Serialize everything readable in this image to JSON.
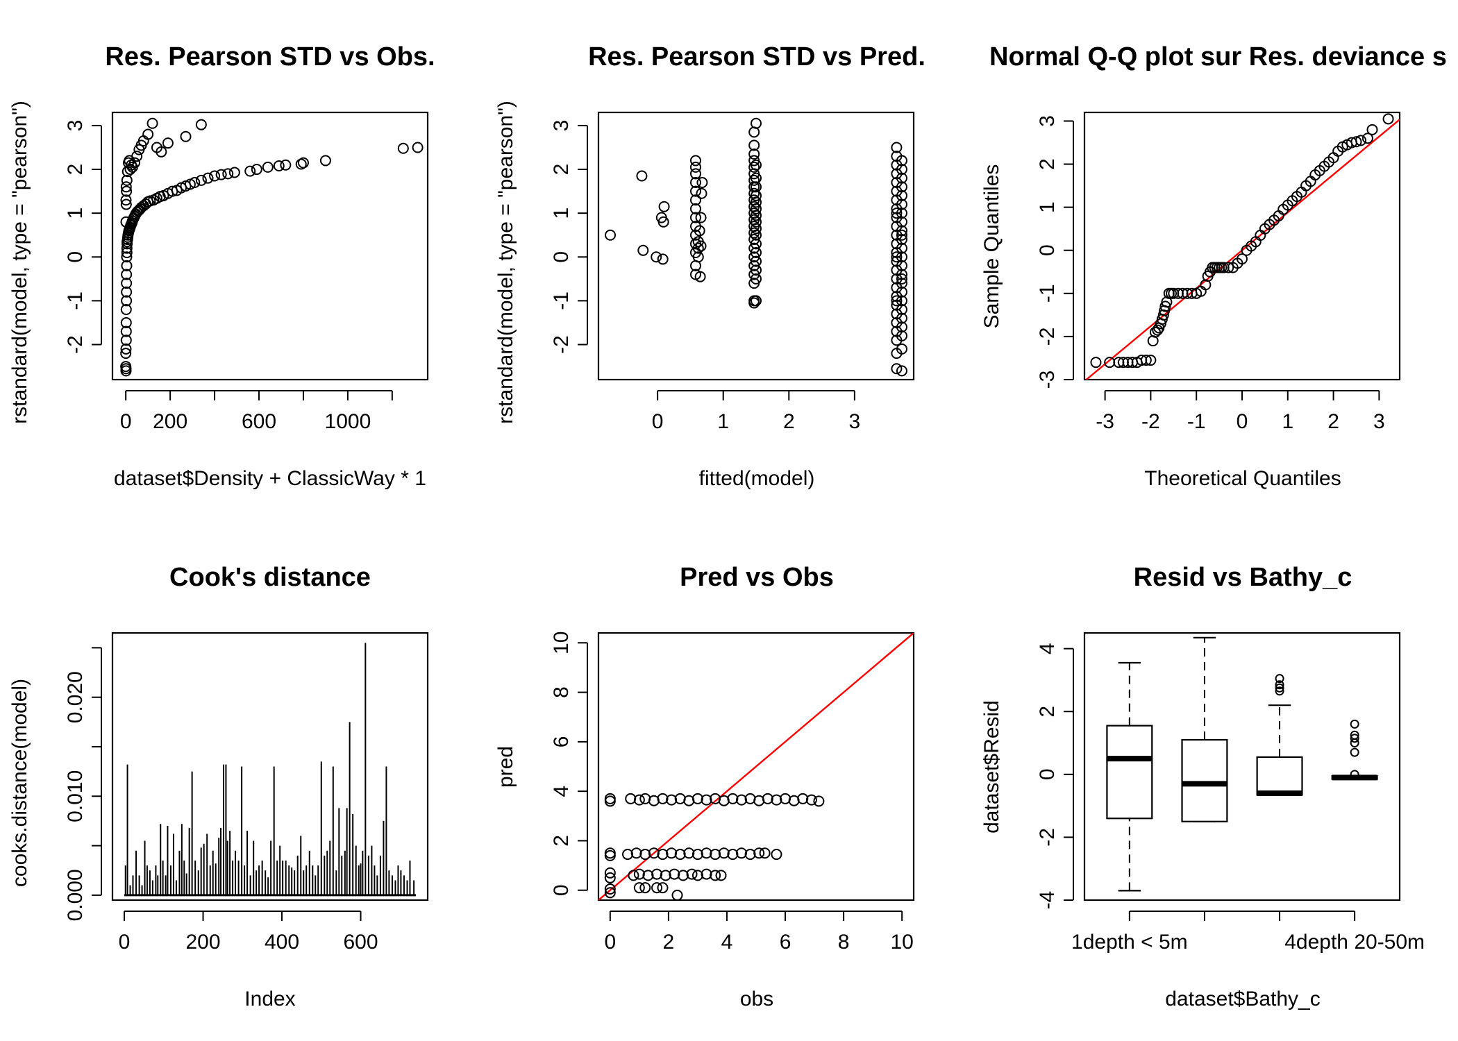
{
  "figure": {
    "background": "#ffffff",
    "point_color": "#000000",
    "reference_line_color": "#ff0000"
  },
  "chart_data": [
    {
      "type": "scatter",
      "title": "Res. Pearson STD vs Obs.",
      "xlabel": "dataset$Density + ClassicWay * 1",
      "ylabel": "rstandard(model, type = \"pearson\")",
      "xlim": [
        -60,
        1360
      ],
      "ylim": [
        -2.8,
        3.3
      ],
      "x_ticks": [
        0,
        200,
        600,
        1000
      ],
      "x_tick_labels": [
        "0",
        "200",
        "600",
        "1000"
      ],
      "x_tick_marks": [
        0,
        200,
        400,
        600,
        800,
        1000,
        1200
      ],
      "y_ticks": [
        -2,
        -1,
        0,
        1,
        2,
        3
      ],
      "y_tick_labels": [
        "-2",
        "-1",
        "0",
        "1",
        "2",
        "3"
      ],
      "grid": false,
      "x": [
        1,
        1,
        1,
        2,
        2,
        2,
        2,
        3,
        3,
        3,
        3,
        4,
        4,
        5,
        5,
        6,
        6,
        8,
        9,
        10,
        12,
        14,
        16,
        18,
        20,
        22,
        25,
        28,
        30,
        35,
        40,
        45,
        50,
        55,
        60,
        65,
        70,
        80,
        90,
        100,
        110,
        125,
        140,
        155,
        170,
        190,
        210,
        230,
        250,
        270,
        290,
        310,
        340,
        370,
        400,
        430,
        460,
        490,
        560,
        590,
        640,
        690,
        720,
        790,
        800,
        900,
        1250,
        1315,
        2,
        3,
        5,
        8,
        12,
        16,
        20,
        25,
        30,
        40,
        50,
        60,
        70,
        80,
        100,
        120,
        140,
        160,
        190,
        270,
        340,
        0,
        0,
        1,
        1,
        2
      ],
      "y": [
        -2.6,
        -2.55,
        -2.1,
        -1.9,
        -1.7,
        -1.5,
        -1.2,
        -1.0,
        -0.8,
        -0.6,
        -0.4,
        -0.2,
        0.0,
        0.1,
        0.2,
        0.3,
        0.35,
        0.4,
        0.45,
        0.5,
        0.55,
        0.6,
        0.62,
        0.65,
        0.68,
        0.72,
        0.75,
        0.78,
        0.82,
        0.88,
        0.93,
        0.98,
        1.02,
        1.05,
        1.07,
        1.1,
        1.13,
        1.17,
        1.21,
        1.26,
        1.28,
        1.3,
        1.34,
        1.38,
        1.4,
        1.45,
        1.5,
        1.52,
        1.58,
        1.62,
        1.66,
        1.7,
        1.75,
        1.8,
        1.85,
        1.88,
        1.9,
        1.93,
        1.96,
        2.0,
        2.05,
        2.08,
        2.1,
        2.12,
        2.15,
        2.2,
        2.48,
        2.5,
        1.2,
        1.5,
        1.75,
        1.95,
        2.15,
        2.2,
        2.0,
        2.1,
        2.05,
        2.15,
        2.3,
        2.45,
        2.55,
        2.65,
        2.8,
        3.05,
        2.5,
        2.4,
        2.6,
        2.75,
        3.02,
        -2.5,
        -2.2,
        0.8,
        1.3,
        1.6
      ]
    },
    {
      "type": "scatter",
      "title": "Res. Pearson STD vs Pred.",
      "xlabel": "fitted(model)",
      "ylabel": "rstandard(model, type = \"pearson\")",
      "xlim": [
        -0.9,
        3.9
      ],
      "ylim": [
        -2.8,
        3.3
      ],
      "x_ticks": [
        0,
        1,
        2,
        3
      ],
      "x_tick_labels": [
        "0",
        "1",
        "2",
        "3"
      ],
      "y_ticks": [
        -2,
        -1,
        0,
        1,
        2,
        3
      ],
      "y_tick_labels": [
        "-2",
        "-1",
        "0",
        "1",
        "2",
        "3"
      ],
      "grid": false,
      "x": [
        -0.72,
        -0.22,
        -0.24,
        -0.02,
        0.08,
        0.09,
        0.06,
        0.1,
        0.58,
        0.58,
        0.58,
        0.58,
        0.58,
        0.58,
        0.58,
        0.58,
        0.58,
        0.58,
        0.58,
        0.58,
        0.58,
        0.58,
        0.62,
        0.62,
        0.62,
        0.65,
        0.66,
        0.67,
        0.68,
        0.66,
        0.64,
        1.47,
        1.47,
        1.47,
        1.47,
        1.47,
        1.47,
        1.47,
        1.47,
        1.47,
        1.47,
        1.47,
        1.47,
        1.47,
        1.47,
        1.47,
        1.47,
        1.47,
        1.47,
        1.47,
        1.47,
        1.47,
        1.47,
        1.47,
        1.5,
        1.5,
        1.5,
        1.5,
        1.5,
        1.5,
        1.5,
        1.5,
        1.5,
        1.5,
        1.5,
        1.5,
        1.5,
        1.5,
        1.5,
        1.5,
        1.5,
        3.64,
        3.64,
        3.64,
        3.64,
        3.64,
        3.64,
        3.64,
        3.64,
        3.64,
        3.64,
        3.64,
        3.64,
        3.64,
        3.64,
        3.64,
        3.64,
        3.64,
        3.64,
        3.64,
        3.64,
        3.64,
        3.64,
        3.64,
        3.64,
        3.64,
        3.64,
        3.64,
        3.64,
        3.72,
        3.72,
        3.72,
        3.72,
        3.72,
        3.72,
        3.72,
        3.72,
        3.72,
        3.72,
        3.72,
        3.72,
        3.72,
        3.72,
        3.72,
        3.72,
        3.72,
        3.72,
        3.72,
        3.72,
        3.72,
        3.72,
        3.72,
        3.72,
        3.72
      ],
      "y": [
        0.5,
        0.15,
        1.85,
        0.0,
        -0.05,
        0.8,
        0.9,
        1.15,
        -0.4,
        -0.2,
        0.1,
        0.3,
        0.5,
        0.7,
        0.9,
        1.1,
        1.3,
        1.5,
        1.7,
        1.9,
        2.05,
        2.2,
        0.0,
        0.2,
        0.35,
        -0.45,
        0.25,
        1.45,
        1.7,
        0.9,
        0.6,
        -1.05,
        -1.0,
        -0.6,
        -0.4,
        -0.2,
        0.0,
        0.2,
        0.4,
        0.55,
        0.7,
        0.85,
        1.0,
        1.15,
        1.3,
        1.45,
        1.6,
        1.75,
        1.9,
        2.05,
        2.2,
        2.35,
        2.55,
        2.85,
        3.05,
        -1.0,
        -0.5,
        -0.3,
        -0.1,
        0.1,
        0.3,
        0.5,
        0.65,
        0.8,
        0.95,
        1.1,
        1.25,
        1.4,
        1.6,
        1.8,
        2.1,
        -2.55,
        -2.2,
        -1.9,
        -1.7,
        -1.5,
        -1.3,
        -1.1,
        -0.9,
        -0.7,
        -0.5,
        -0.3,
        -0.1,
        0.1,
        0.3,
        0.5,
        0.7,
        0.9,
        1.1,
        1.3,
        1.5,
        1.7,
        1.9,
        2.1,
        2.3,
        2.5,
        -1.0,
        0.0,
        1.0,
        -2.6,
        -2.1,
        -1.8,
        -1.6,
        -1.4,
        -1.2,
        -1.0,
        -0.8,
        -0.6,
        -0.4,
        -0.2,
        0.0,
        0.2,
        0.4,
        0.6,
        0.8,
        1.0,
        1.2,
        1.4,
        1.6,
        1.8,
        2.0,
        2.2,
        -0.5,
        0.5
      ]
    },
    {
      "type": "scatter",
      "title": "Normal Q-Q plot sur Res. deviance s",
      "xlabel": "Theoretical Quantiles",
      "ylabel": "Sample Quantiles",
      "xlim": [
        -3.45,
        3.45
      ],
      "ylim": [
        -3.0,
        3.2
      ],
      "x_ticks": [
        -3,
        -2,
        -1,
        0,
        1,
        2,
        3
      ],
      "x_tick_labels": [
        "-3",
        "-2",
        "-1",
        "0",
        "1",
        "2",
        "3"
      ],
      "y_ticks": [
        -3,
        -2,
        -1,
        0,
        1,
        2,
        3
      ],
      "y_tick_labels": [
        "-3",
        "-2",
        "-1",
        "0",
        "1",
        "2",
        "3"
      ],
      "reference_line": {
        "slope": 0.88,
        "intercept": 0.0
      },
      "grid": false,
      "x": [
        -3.2,
        -2.9,
        -2.7,
        -2.6,
        -2.5,
        -2.4,
        -2.3,
        -2.2,
        -2.1,
        -2.0,
        -1.95,
        -1.9,
        -1.85,
        -1.82,
        -1.78,
        -1.75,
        -1.72,
        -1.7,
        -1.68,
        -1.65,
        -1.6,
        -1.55,
        -1.5,
        -1.4,
        -1.3,
        -1.2,
        -1.1,
        -1.0,
        -0.9,
        -0.8,
        -0.75,
        -0.7,
        -0.65,
        -0.6,
        -0.55,
        -0.5,
        -0.45,
        -0.4,
        -0.3,
        -0.2,
        -0.1,
        0.0,
        0.1,
        0.2,
        0.3,
        0.4,
        0.5,
        0.6,
        0.7,
        0.8,
        0.9,
        1.0,
        1.1,
        1.2,
        1.3,
        1.4,
        1.5,
        1.6,
        1.7,
        1.8,
        1.9,
        2.0,
        2.1,
        2.2,
        2.3,
        2.4,
        2.5,
        2.6,
        2.75,
        2.85,
        3.2
      ],
      "y": [
        -2.6,
        -2.6,
        -2.6,
        -2.6,
        -2.6,
        -2.6,
        -2.6,
        -2.55,
        -2.55,
        -2.55,
        -2.1,
        -1.9,
        -1.85,
        -1.8,
        -1.7,
        -1.6,
        -1.5,
        -1.4,
        -1.3,
        -1.2,
        -1.0,
        -1.0,
        -1.0,
        -1.0,
        -1.0,
        -1.0,
        -1.0,
        -1.0,
        -0.95,
        -0.8,
        -0.6,
        -0.5,
        -0.4,
        -0.4,
        -0.4,
        -0.4,
        -0.4,
        -0.4,
        -0.4,
        -0.4,
        -0.3,
        -0.2,
        0.0,
        0.1,
        0.2,
        0.35,
        0.5,
        0.6,
        0.7,
        0.8,
        0.95,
        1.05,
        1.15,
        1.25,
        1.35,
        1.5,
        1.6,
        1.75,
        1.85,
        1.95,
        2.05,
        2.15,
        2.3,
        2.4,
        2.45,
        2.5,
        2.52,
        2.55,
        2.6,
        2.8,
        3.05
      ]
    },
    {
      "type": "line",
      "mark": "histogram-spikes",
      "title": "Cook's distance",
      "xlabel": "Index",
      "ylabel": "cooks.distance(model)",
      "xlim": [
        -30,
        770
      ],
      "ylim": [
        -0.0005,
        0.0265
      ],
      "x_ticks": [
        0,
        200,
        400,
        600
      ],
      "x_tick_labels": [
        "0",
        "200",
        "400",
        "600"
      ],
      "y_ticks": [
        0.0,
        0.01,
        0.02
      ],
      "y_tick_labels": [
        "0.000",
        "0.010",
        "0.020"
      ],
      "y_tick_marks": [
        0.0,
        0.005,
        0.01,
        0.015,
        0.02,
        0.025
      ],
      "grid": false,
      "x": [
        3,
        8,
        15,
        22,
        30,
        38,
        45,
        52,
        58,
        65,
        72,
        80,
        85,
        92,
        98,
        105,
        110,
        118,
        125,
        132,
        140,
        146,
        152,
        158,
        165,
        172,
        180,
        188,
        195,
        202,
        210,
        218,
        225,
        232,
        240,
        245,
        252,
        258,
        262,
        268,
        275,
        282,
        290,
        298,
        305,
        312,
        320,
        328,
        335,
        342,
        350,
        358,
        365,
        372,
        380,
        388,
        395,
        402,
        410,
        418,
        425,
        432,
        440,
        448,
        455,
        462,
        470,
        478,
        485,
        492,
        500,
        508,
        515,
        522,
        530,
        538,
        545,
        552,
        560,
        565,
        572,
        580,
        588,
        595,
        600,
        605,
        612,
        620,
        628,
        635,
        642,
        650,
        658,
        665,
        672,
        680,
        688,
        695,
        702,
        710,
        718,
        725,
        735
      ],
      "y": [
        0.003,
        0.0132,
        0.001,
        0.002,
        0.0045,
        0.002,
        0.001,
        0.0055,
        0.003,
        0.0025,
        0.0015,
        0.003,
        0.002,
        0.0072,
        0.0035,
        0.002,
        0.007,
        0.003,
        0.0062,
        0.0015,
        0.0045,
        0.0072,
        0.0035,
        0.0022,
        0.0068,
        0.0125,
        0.0035,
        0.0025,
        0.0048,
        0.0052,
        0.0062,
        0.003,
        0.0045,
        0.0032,
        0.0058,
        0.0068,
        0.0132,
        0.0132,
        0.0055,
        0.0065,
        0.0035,
        0.0045,
        0.0035,
        0.013,
        0.003,
        0.0065,
        0.002,
        0.0055,
        0.0025,
        0.003,
        0.0035,
        0.0025,
        0.0018,
        0.0055,
        0.013,
        0.0035,
        0.005,
        0.0035,
        0.0035,
        0.003,
        0.0028,
        0.0025,
        0.004,
        0.006,
        0.0025,
        0.003,
        0.0045,
        0.003,
        0.002,
        0.003,
        0.0135,
        0.004,
        0.0045,
        0.0055,
        0.013,
        0.0025,
        0.0088,
        0.004,
        0.0045,
        0.0088,
        0.0175,
        0.0082,
        0.005,
        0.003,
        0.0032,
        0.0045,
        0.0255,
        0.004,
        0.005,
        0.003,
        0.002,
        0.004,
        0.0075,
        0.013,
        0.0025,
        0.002,
        0.0015,
        0.003,
        0.0025,
        0.002,
        0.0015,
        0.0035,
        0.0015
      ]
    },
    {
      "type": "scatter",
      "title": "Pred vs Obs",
      "xlabel": "obs",
      "ylabel": "pred",
      "xlim": [
        -0.4,
        10.4
      ],
      "ylim": [
        -0.4,
        10.4
      ],
      "x_ticks": [
        0,
        2,
        4,
        6,
        8,
        10
      ],
      "x_tick_labels": [
        "0",
        "2",
        "4",
        "6",
        "8",
        "10"
      ],
      "y_ticks": [
        0,
        2,
        4,
        6,
        8,
        10
      ],
      "y_tick_labels": [
        "0",
        "2",
        "4",
        "6",
        "8",
        "10"
      ],
      "reference_line": {
        "slope": 1,
        "intercept": 0
      },
      "grid": false,
      "x": [
        0,
        0,
        0,
        0,
        0,
        0,
        0,
        0.7,
        1.0,
        1.2,
        1.5,
        1.8,
        2.1,
        2.4,
        2.7,
        3.0,
        3.3,
        3.6,
        3.9,
        4.2,
        4.5,
        4.8,
        5.1,
        5.4,
        5.7,
        6.0,
        6.3,
        6.6,
        6.9,
        7.15,
        0.6,
        0.9,
        1.2,
        1.5,
        1.8,
        2.1,
        2.4,
        2.7,
        3.0,
        3.3,
        3.6,
        3.9,
        4.2,
        4.5,
        4.8,
        5.1,
        5.3,
        5.7,
        0.8,
        1.0,
        1.3,
        1.6,
        1.9,
        2.2,
        2.5,
        2.8,
        3.0,
        3.3,
        3.6,
        3.8,
        1.0,
        1.2,
        1.6,
        1.8,
        2.3,
        0
      ],
      "y": [
        3.6,
        3.7,
        1.5,
        1.4,
        0.7,
        0.5,
        0.05,
        3.7,
        3.65,
        3.7,
        3.62,
        3.7,
        3.65,
        3.7,
        3.62,
        3.7,
        3.65,
        3.7,
        3.62,
        3.7,
        3.65,
        3.7,
        3.62,
        3.7,
        3.65,
        3.7,
        3.62,
        3.7,
        3.65,
        3.6,
        1.45,
        1.5,
        1.45,
        1.5,
        1.45,
        1.5,
        1.45,
        1.5,
        1.45,
        1.5,
        1.45,
        1.5,
        1.45,
        1.5,
        1.45,
        1.5,
        1.5,
        1.45,
        0.6,
        0.65,
        0.6,
        0.65,
        0.6,
        0.65,
        0.6,
        0.65,
        0.6,
        0.65,
        0.6,
        0.6,
        0.1,
        0.1,
        0.1,
        0.1,
        -0.2,
        -0.1
      ]
    },
    {
      "type": "box",
      "title": "Resid vs Bathy_c",
      "xlabel": "dataset$Bathy_c",
      "ylabel": "dataset$Resid",
      "xlim": [
        0.4,
        4.6
      ],
      "ylim": [
        -4.0,
        4.5
      ],
      "x_ticks": [
        1,
        2,
        3,
        4
      ],
      "x_tick_labels": [
        "1depth < 5m",
        "",
        "",
        "4depth 20-50m"
      ],
      "y_ticks": [
        -4,
        -2,
        0,
        2,
        4
      ],
      "y_tick_labels": [
        "-4",
        "-2",
        "0",
        "2",
        "4"
      ],
      "grid": false,
      "boxes": [
        {
          "min": -3.7,
          "q1": -1.4,
          "median": 0.5,
          "q3": 1.55,
          "max": 3.55,
          "outliers": []
        },
        {
          "min": -1.5,
          "q1": -1.5,
          "median": -0.3,
          "q3": 1.1,
          "max": 4.35,
          "outliers": []
        },
        {
          "min": -0.65,
          "q1": -0.65,
          "median": -0.6,
          "q3": 0.55,
          "max": 2.2,
          "outliers": [
            2.65,
            2.75,
            2.85,
            3.05
          ]
        },
        {
          "min": -0.15,
          "q1": -0.15,
          "median": -0.1,
          "q3": -0.05,
          "max": -0.05,
          "outliers": [
            0.0,
            0.7,
            1.0,
            1.15,
            1.25,
            1.6
          ]
        }
      ]
    }
  ]
}
